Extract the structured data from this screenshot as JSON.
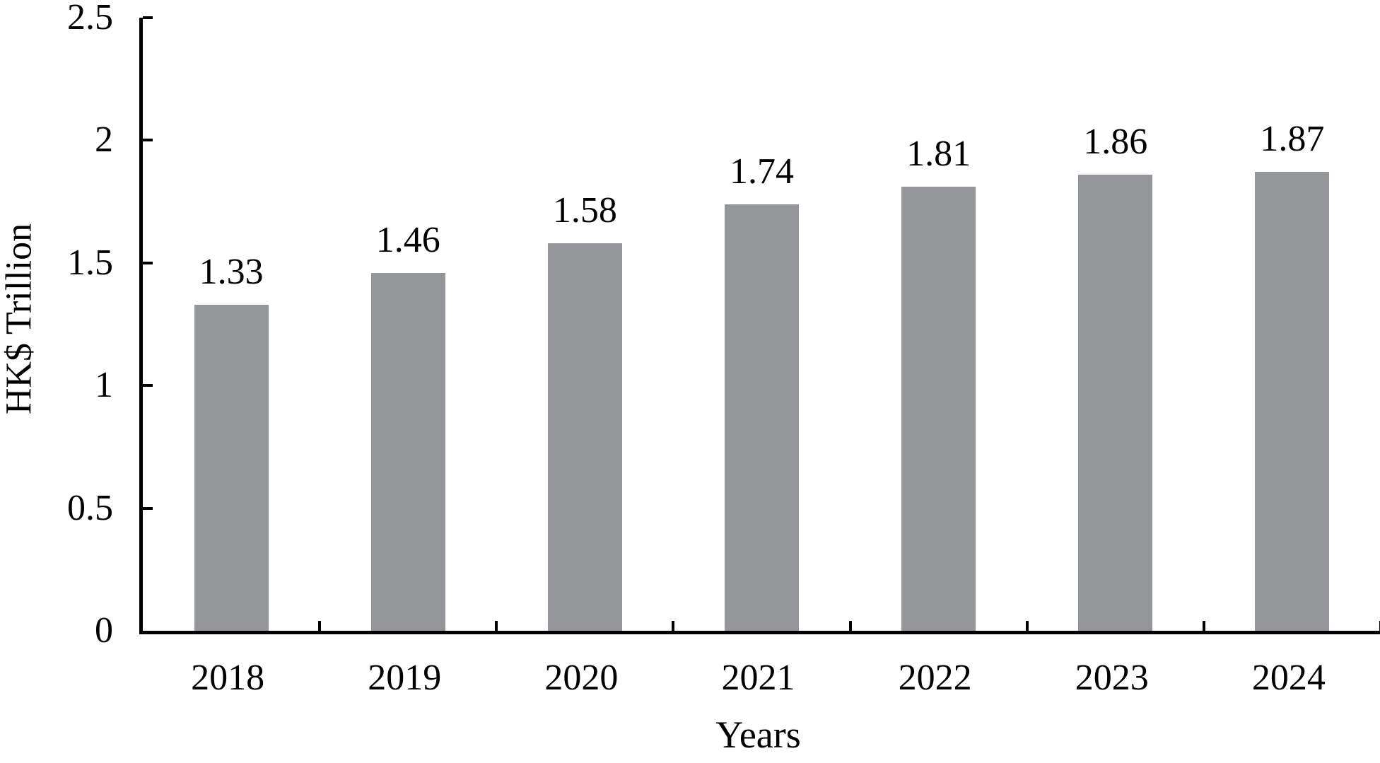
{
  "chart_data": {
    "type": "bar",
    "title": "",
    "xlabel": "Years",
    "ylabel": "HK$ Trillion",
    "categories": [
      "2018",
      "2019",
      "2020",
      "2021",
      "2022",
      "2023",
      "2024"
    ],
    "values": [
      1.33,
      1.46,
      1.58,
      1.74,
      1.81,
      1.86,
      1.87
    ],
    "data_labels": [
      "1.33",
      "1.46",
      "1.58",
      "1.74",
      "1.81",
      "1.86",
      "1.87"
    ],
    "ylim": [
      0,
      2.5
    ],
    "y_ticks": [
      0,
      0.5,
      1,
      1.5,
      2,
      2.5
    ],
    "y_tick_labels": [
      "0",
      "0.5",
      "1",
      "1.5",
      "2",
      "2.5"
    ],
    "grid": false,
    "legend": false,
    "bar_color": "#95969A",
    "axis_color": "#000000",
    "text_color": "#000000",
    "background_color": "#FFFFFF"
  }
}
